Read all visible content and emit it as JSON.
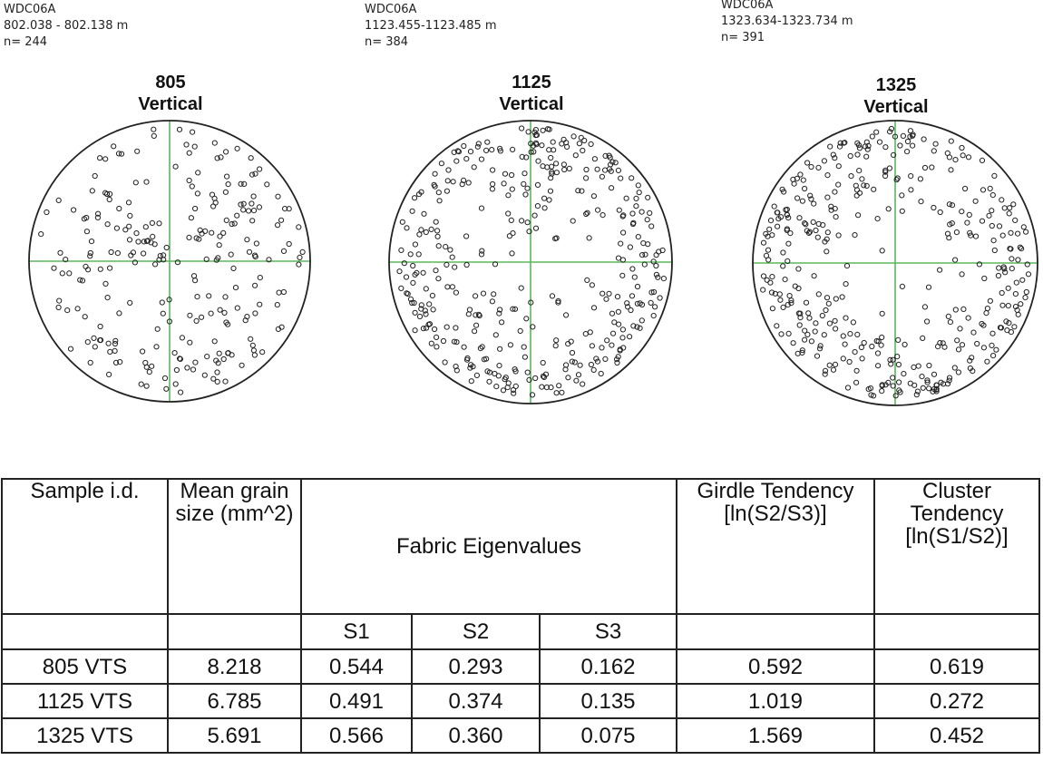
{
  "samples": [
    {
      "core": "WDC06A",
      "depth": "802.038 - 802.138 m",
      "n_label": "n= 244",
      "title_top": "805",
      "title_bottom": "Vertical"
    },
    {
      "core": "WDC06A",
      "depth": "1123.455-1123.485 m",
      "n_label": "n= 384",
      "title_top": "1125",
      "title_bottom": "Vertical"
    },
    {
      "core": "WDC06A",
      "depth": "1323.634-1323.734 m",
      "n_label": "n=  391",
      "title_top": "1325",
      "title_bottom": "Vertical"
    }
  ],
  "chart_data": [
    {
      "type": "scatter",
      "title": "805 Vertical",
      "n": 244,
      "distribution": "scattered throughout the stereonet",
      "colors": {
        "axes": "#5cb85c",
        "points": "#222222"
      }
    },
    {
      "type": "scatter",
      "title": "1125 Vertical",
      "n": 384,
      "distribution": "girdle near the circle edge, sparse centre",
      "colors": {
        "axes": "#5cb85c",
        "points": "#222222"
      }
    },
    {
      "type": "scatter",
      "title": "1325 Vertical",
      "n": 391,
      "distribution": "girdle concentrated near the edge, dense at bottom",
      "colors": {
        "axes": "#5cb85c",
        "points": "#222222"
      }
    }
  ],
  "table": {
    "headers": {
      "sample": "Sample i.d.",
      "grain": "Mean grain size (mm^2)",
      "eigen": "Fabric Eigenvalues",
      "girdle": "Girdle Tendency [ln(S2/S3)]",
      "cluster": "Cluster Tendency [ln(S1/S2)]"
    },
    "sub_headers": {
      "s1": "S1",
      "s2": "S2",
      "s3": "S3"
    },
    "rows": [
      {
        "id": "805 VTS",
        "grain": "8.218",
        "s1": "0.544",
        "s2": "0.293",
        "s3": "0.162",
        "girdle": "0.592",
        "cluster": "0.619"
      },
      {
        "id": "1125 VTS",
        "grain": "6.785",
        "s1": "0.491",
        "s2": "0.374",
        "s3": "0.135",
        "girdle": "1.019",
        "cluster": "0.272"
      },
      {
        "id": "1325 VTS",
        "grain": "5.691",
        "s1": "0.566",
        "s2": "0.360",
        "s3": "0.075",
        "girdle": "1.569",
        "cluster": "0.452"
      }
    ]
  }
}
